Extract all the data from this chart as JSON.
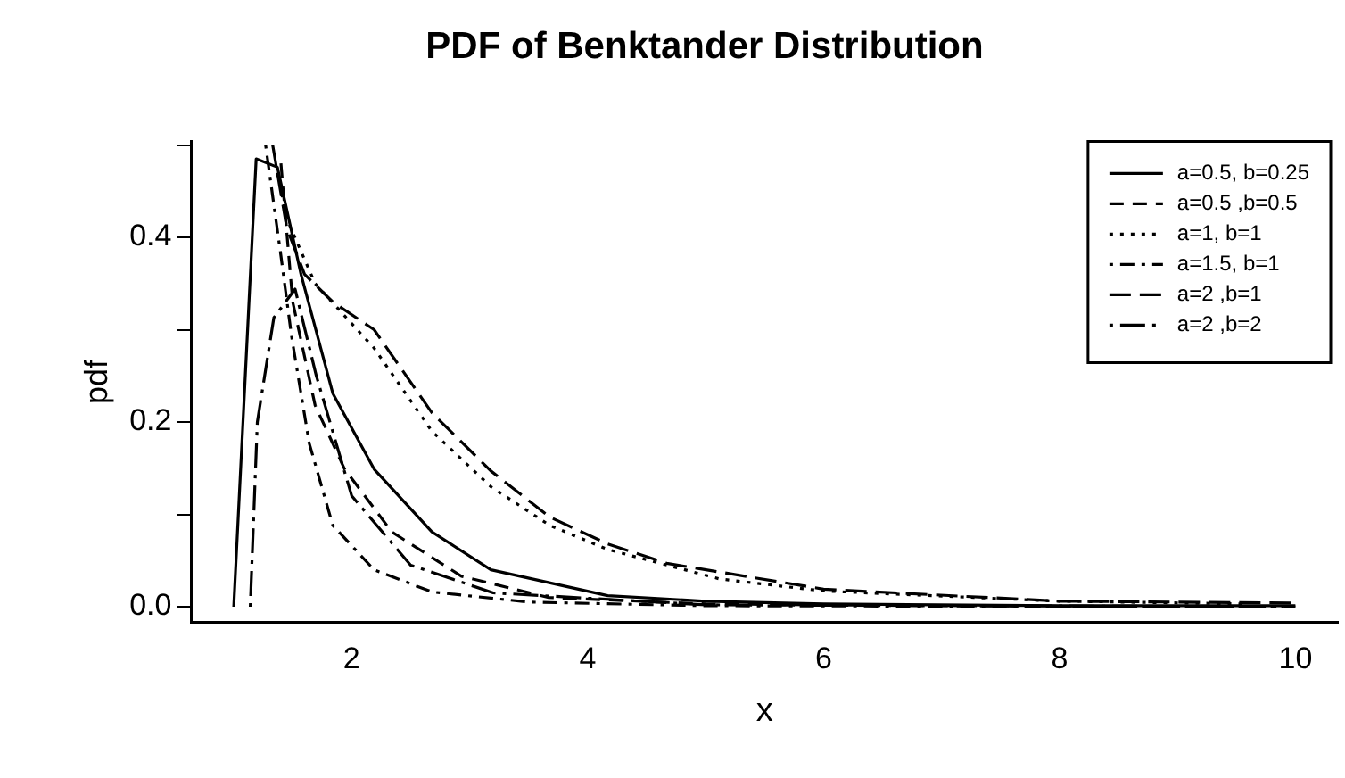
{
  "chart_data": {
    "type": "line",
    "title": "PDF of Benktander Distribution",
    "xlabel": "x",
    "ylabel": "pdf",
    "xlim": [
      0.64,
      10.36
    ],
    "xticks": [
      2,
      4,
      6,
      8,
      10
    ],
    "ylim": [
      -0.017,
      0.504
    ],
    "yticks": [
      {
        "value": 0,
        "label": "0.0"
      },
      {
        "value": 0.1,
        "label": null
      },
      0.2,
      {
        "value": 0.3,
        "label": null
      },
      0.4,
      {
        "value": 0.5,
        "label": null
      }
    ],
    "grid": false,
    "legend": "top right",
    "marker": "none",
    "series": [
      {
        "name": "a=0.5, b=0.25",
        "color": "#000000",
        "line_style": "solid",
        "x": [
          1.0,
          1.19,
          1.37,
          1.57,
          1.84,
          2.19,
          2.68,
          3.18,
          4.17,
          5,
          6,
          8,
          10
        ],
        "values": [
          0,
          0.485,
          0.476,
          0.36,
          0.231,
          0.149,
          0.081,
          0.04,
          0.012,
          0.006,
          0.003,
          0.001,
          0.001
        ]
      },
      {
        "name": "a=0.5 ,b=0.5",
        "color": "#000000",
        "line_style": "dashed",
        "x": [
          1.4,
          1.5,
          1.69,
          1.94,
          2.34,
          2.93,
          3.67,
          5,
          7,
          9
        ],
        "values": [
          0.48,
          0.33,
          0.218,
          0.149,
          0.081,
          0.033,
          0.01,
          0.003,
          0.001,
          0.0
        ]
      },
      {
        "name": "a=1, b=1",
        "color": "#000000",
        "line_style": "dotted",
        "x": [
          1.37,
          1.45,
          1.69,
          2.19,
          2.68,
          3.18,
          3.68,
          4.17,
          5.12,
          6,
          8,
          9.6
        ],
        "values": [
          0.47,
          0.42,
          0.35,
          0.28,
          0.19,
          0.13,
          0.088,
          0.062,
          0.03,
          0.017,
          0.006,
          0.003
        ]
      },
      {
        "name": "a=1.5, b=1",
        "color": "#000000",
        "line_style": "dashdot",
        "x": [
          1.27,
          1.4,
          1.49,
          1.64,
          1.84,
          2.19,
          2.68,
          3.5,
          5,
          9.9
        ],
        "values": [
          0.5,
          0.38,
          0.293,
          0.177,
          0.088,
          0.04,
          0.016,
          0.005,
          0.001,
          0.0
        ]
      },
      {
        "name": "a=2 ,b=1",
        "color": "#000000",
        "line_style": "longdash",
        "x": [
          1.33,
          1.45,
          1.6,
          1.84,
          2.19,
          2.68,
          3.18,
          3.68,
          4.17,
          4.67,
          6,
          8,
          10
        ],
        "values": [
          0.5,
          0.41,
          0.36,
          0.33,
          0.3,
          0.21,
          0.147,
          0.097,
          0.068,
          0.047,
          0.019,
          0.006,
          0.004
        ]
      },
      {
        "name": "a=2 ,b=2",
        "color": "#000000",
        "line_style": "dotdash",
        "x": [
          1.14,
          1.2,
          1.34,
          1.52,
          1.7,
          2.0,
          2.5,
          3.2,
          5,
          10
        ],
        "values": [
          0,
          0.2,
          0.313,
          0.344,
          0.25,
          0.12,
          0.045,
          0.015,
          0.002,
          0.0
        ]
      }
    ]
  }
}
